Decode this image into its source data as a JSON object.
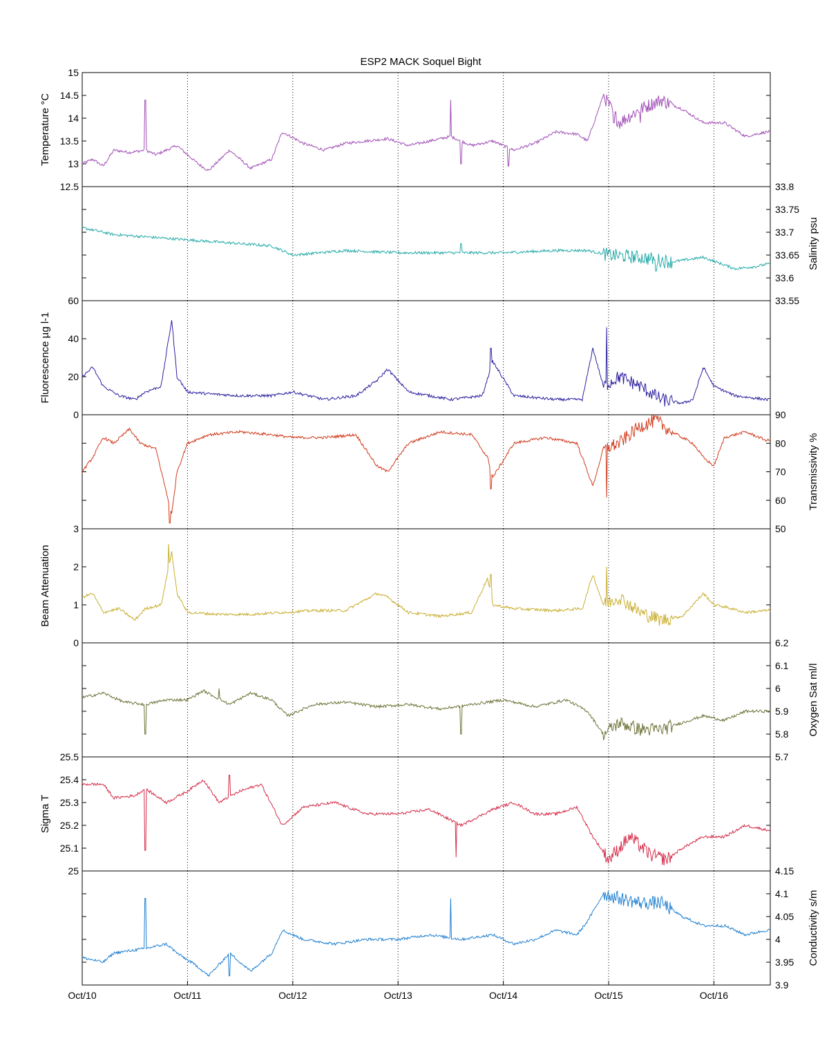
{
  "chart_data": {
    "type": "line",
    "title": "ESP2 MACK  Soquel Bight",
    "x": {
      "range": [
        "Oct/10",
        "Oct/16 13:00"
      ],
      "tick_labels": [
        "Oct/10",
        "Oct/11",
        "Oct/12",
        "Oct/13",
        "Oct/14",
        "Oct/15",
        "Oct/16"
      ],
      "grid": "dotted vertical lines at each day"
    },
    "panels": [
      {
        "ylabel": "Temperature °C",
        "axis_side": "left",
        "color": "#a04fb5",
        "ylim": [
          12.5,
          15
        ],
        "ticks": [
          "12.5",
          "13",
          "13.5",
          "14",
          "14.5",
          "15"
        ],
        "series": {
          "x_days": [
            0,
            0.1,
            0.2,
            0.3,
            0.45,
            0.6,
            0.7,
            0.9,
            1.1,
            1.2,
            1.4,
            1.6,
            1.8,
            1.9,
            2.1,
            2.3,
            2.5,
            2.7,
            2.9,
            3.1,
            3.3,
            3.5,
            3.7,
            3.9,
            4.1,
            4.3,
            4.5,
            4.7,
            4.8,
            4.95,
            5.1,
            5.3,
            5.5,
            5.7,
            5.9,
            6.1,
            6.3,
            6.5
          ],
          "y": [
            13.0,
            13.1,
            12.95,
            13.3,
            13.25,
            13.3,
            13.2,
            13.4,
            13.0,
            12.85,
            13.3,
            12.9,
            13.1,
            13.7,
            13.45,
            13.3,
            13.45,
            13.5,
            13.55,
            13.4,
            13.5,
            13.6,
            13.4,
            13.5,
            13.3,
            13.45,
            13.7,
            13.65,
            13.5,
            14.5,
            13.9,
            14.2,
            14.4,
            14.2,
            13.9,
            13.9,
            13.6,
            13.7
          ],
          "spikes": [
            [
              0.6,
              14.4
            ],
            [
              3.5,
              14.4
            ],
            [
              3.6,
              13.0
            ],
            [
              4.05,
              12.95
            ],
            [
              5.05,
              13.9
            ],
            [
              5.3,
              13.9
            ]
          ]
        }
      },
      {
        "ylabel": "Salinity psu",
        "axis_side": "right",
        "color": "#25aaa8",
        "ylim": [
          33.55,
          33.8
        ],
        "ticks": [
          "33.55",
          "33.6",
          "33.65",
          "33.7",
          "33.75",
          "33.8"
        ],
        "series": {
          "x_days": [
            0,
            0.3,
            0.6,
            0.9,
            1.2,
            1.5,
            1.8,
            2.0,
            2.5,
            3.0,
            3.5,
            4.0,
            4.5,
            4.8,
            5.0,
            5.3,
            5.6,
            5.9,
            6.2,
            6.4,
            6.5
          ],
          "y": [
            33.71,
            33.695,
            33.69,
            33.685,
            33.68,
            33.675,
            33.67,
            33.65,
            33.66,
            33.655,
            33.655,
            33.655,
            33.66,
            33.66,
            33.65,
            33.645,
            33.635,
            33.645,
            33.62,
            33.625,
            33.63
          ],
          "spikes": [
            [
              3.6,
              33.675
            ],
            [
              5.45,
              33.615
            ]
          ]
        }
      },
      {
        "ylabel": "Fluorescence µg l-1",
        "axis_side": "left",
        "color": "#2b1f9e",
        "ylim": [
          0,
          60
        ],
        "ticks": [
          "0",
          "20",
          "40",
          "60"
        ],
        "series": {
          "x_days": [
            0,
            0.1,
            0.2,
            0.35,
            0.5,
            0.6,
            0.75,
            0.85,
            0.9,
            1.0,
            1.2,
            1.5,
            1.8,
            2.0,
            2.3,
            2.6,
            2.8,
            2.9,
            3.1,
            3.5,
            3.8,
            3.9,
            4.1,
            4.5,
            4.75,
            4.85,
            4.95,
            5.1,
            5.3,
            5.5,
            5.7,
            5.8,
            5.9,
            6.0,
            6.2,
            6.5
          ],
          "y": [
            20,
            25,
            15,
            10,
            8,
            12,
            15,
            50,
            20,
            12,
            11,
            10,
            10,
            12,
            8,
            10,
            18,
            24,
            12,
            8,
            10,
            28,
            10,
            8,
            8,
            35,
            15,
            20,
            15,
            8,
            6,
            8,
            25,
            15,
            10,
            8
          ],
          "spikes": [
            [
              4.98,
              46
            ],
            [
              3.88,
              35
            ]
          ]
        }
      },
      {
        "ylabel": "Transmissivity %",
        "axis_side": "right",
        "color": "#d03a1c",
        "ylim": [
          50,
          90
        ],
        "ticks": [
          "50",
          "60",
          "70",
          "80",
          "90"
        ],
        "series": {
          "x_days": [
            0,
            0.1,
            0.2,
            0.3,
            0.45,
            0.55,
            0.7,
            0.85,
            0.9,
            1.0,
            1.2,
            1.5,
            1.8,
            2.0,
            2.3,
            2.6,
            2.8,
            2.9,
            3.1,
            3.4,
            3.7,
            3.85,
            3.9,
            4.1,
            4.4,
            4.7,
            4.8,
            4.85,
            4.95,
            5.1,
            5.3,
            5.45,
            5.6,
            5.8,
            5.9,
            6.0,
            6.1,
            6.3,
            6.5
          ],
          "y": [
            70,
            75,
            82,
            80,
            85,
            80,
            78,
            55,
            70,
            80,
            83,
            84,
            83,
            82,
            82,
            83,
            72,
            70,
            80,
            84,
            83,
            75,
            68,
            80,
            82,
            80,
            70,
            65,
            78,
            80,
            86,
            88,
            84,
            80,
            75,
            72,
            82,
            84,
            81
          ],
          "spikes": [
            [
              4.98,
              61
            ],
            [
              0.83,
              52
            ],
            [
              3.88,
              64
            ]
          ]
        }
      },
      {
        "ylabel": "Beam Attenuation",
        "axis_side": "left",
        "color": "#c8ae30",
        "ylim": [
          0,
          3
        ],
        "ticks": [
          "0",
          "1",
          "2",
          "3"
        ],
        "series": {
          "x_days": [
            0,
            0.1,
            0.2,
            0.35,
            0.5,
            0.6,
            0.75,
            0.85,
            0.9,
            1.0,
            1.3,
            1.6,
            1.9,
            2.2,
            2.5,
            2.8,
            2.9,
            3.1,
            3.4,
            3.7,
            3.85,
            3.9,
            4.1,
            4.5,
            4.75,
            4.85,
            4.95,
            5.1,
            5.3,
            5.5,
            5.7,
            5.9,
            6.0,
            6.1,
            6.3,
            6.5
          ],
          "y": [
            1.2,
            1.3,
            0.8,
            0.9,
            0.6,
            0.9,
            1.0,
            2.4,
            1.3,
            0.8,
            0.75,
            0.75,
            0.8,
            0.85,
            0.85,
            1.3,
            1.2,
            0.8,
            0.7,
            0.8,
            1.7,
            1.0,
            0.9,
            0.85,
            0.9,
            1.8,
            1.0,
            1.2,
            0.8,
            0.6,
            0.7,
            1.3,
            1.0,
            0.95,
            0.8,
            0.85
          ],
          "spikes": [
            [
              4.98,
              2.0
            ],
            [
              3.88,
              1.8
            ],
            [
              0.82,
              2.6
            ]
          ]
        }
      },
      {
        "ylabel": "Oxygen Sat ml/l",
        "axis_side": "right",
        "color": "#6f7338",
        "ylim": [
          5.7,
          6.2
        ],
        "ticks": [
          "5.7",
          "5.8",
          "5.9",
          "6",
          "6.1",
          "6.2"
        ],
        "series": {
          "x_days": [
            0,
            0.2,
            0.4,
            0.6,
            0.8,
            1.0,
            1.15,
            1.4,
            1.6,
            1.8,
            1.95,
            2.2,
            2.5,
            2.8,
            3.1,
            3.4,
            3.7,
            4.0,
            4.3,
            4.6,
            4.8,
            4.95,
            5.1,
            5.3,
            5.5,
            5.7,
            5.9,
            6.1,
            6.3,
            6.5
          ],
          "y": [
            5.96,
            5.98,
            5.94,
            5.93,
            5.95,
            5.95,
            5.99,
            5.93,
            5.98,
            5.95,
            5.88,
            5.93,
            5.94,
            5.92,
            5.93,
            5.91,
            5.93,
            5.95,
            5.92,
            5.95,
            5.9,
            5.8,
            5.85,
            5.82,
            5.82,
            5.85,
            5.88,
            5.86,
            5.9,
            5.9
          ],
          "spikes": [
            [
              0.6,
              5.8
            ],
            [
              1.3,
              6.0
            ],
            [
              3.6,
              5.8
            ]
          ]
        }
      },
      {
        "ylabel": "Sigma T",
        "axis_side": "left",
        "color": "#d42c49",
        "ylim": [
          25,
          25.5
        ],
        "ticks": [
          "25",
          "25.1",
          "25.2",
          "25.3",
          "25.4",
          "25.5"
        ],
        "series": {
          "x_days": [
            0,
            0.2,
            0.3,
            0.5,
            0.6,
            0.8,
            1.0,
            1.15,
            1.3,
            1.5,
            1.7,
            1.9,
            2.1,
            2.4,
            2.7,
            3.0,
            3.3,
            3.6,
            3.9,
            4.1,
            4.3,
            4.5,
            4.7,
            4.85,
            5.0,
            5.2,
            5.4,
            5.55,
            5.7,
            5.9,
            6.1,
            6.3,
            6.5
          ],
          "y": [
            25.38,
            25.38,
            25.32,
            25.33,
            25.36,
            25.3,
            25.35,
            25.4,
            25.3,
            25.35,
            25.38,
            25.2,
            25.28,
            25.3,
            25.25,
            25.25,
            25.27,
            25.2,
            25.27,
            25.3,
            25.25,
            25.25,
            25.28,
            25.15,
            25.05,
            25.15,
            25.07,
            25.05,
            25.1,
            25.15,
            25.15,
            25.2,
            25.18
          ],
          "spikes": [
            [
              0.6,
              25.09
            ],
            [
              3.55,
              25.06
            ],
            [
              1.4,
              25.42
            ]
          ]
        }
      },
      {
        "ylabel": "Conductivity s/m",
        "axis_side": "right",
        "color": "#1f7fd0",
        "ylim": [
          3.9,
          4.15
        ],
        "ticks": [
          "3.9",
          "3.95",
          "4",
          "4.05",
          "4.1",
          "4.15"
        ],
        "series": {
          "x_days": [
            0,
            0.2,
            0.3,
            0.6,
            0.8,
            0.9,
            1.1,
            1.2,
            1.4,
            1.6,
            1.8,
            1.9,
            2.1,
            2.4,
            2.7,
            3.0,
            3.3,
            3.6,
            3.9,
            4.1,
            4.3,
            4.5,
            4.7,
            4.8,
            4.95,
            5.1,
            5.3,
            5.5,
            5.7,
            5.9,
            6.1,
            6.3,
            6.5
          ],
          "y": [
            3.96,
            3.95,
            3.97,
            3.98,
            3.99,
            3.97,
            3.94,
            3.92,
            3.97,
            3.93,
            3.97,
            4.02,
            4.0,
            3.99,
            4.0,
            4.0,
            4.01,
            4.0,
            4.01,
            3.99,
            4.0,
            4.02,
            4.01,
            4.04,
            4.1,
            4.09,
            4.08,
            4.08,
            4.05,
            4.03,
            4.03,
            4.01,
            4.02
          ],
          "spikes": [
            [
              0.6,
              4.09
            ],
            [
              3.5,
              4.09
            ],
            [
              1.4,
              3.92
            ]
          ]
        }
      }
    ]
  }
}
